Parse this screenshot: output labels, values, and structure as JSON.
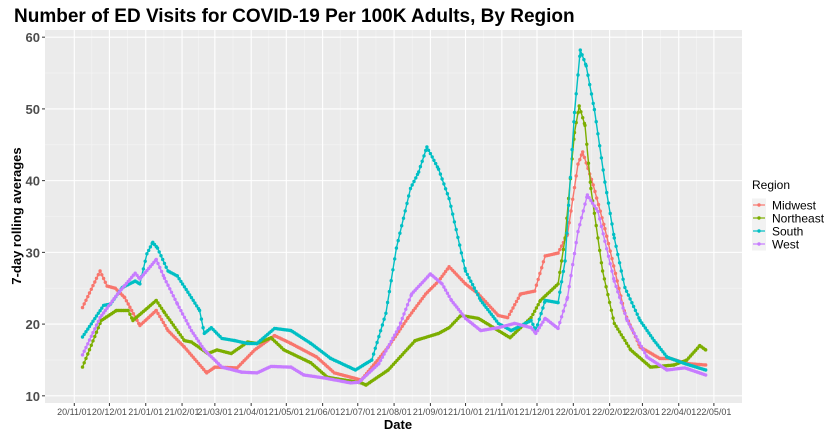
{
  "chart_data": {
    "type": "scatter",
    "title": "Number of ED Visits for COVID-19 Per 100K Adults, By Region",
    "xlabel": "Date",
    "ylabel": "7-day rolling averages",
    "x_is": "day index (day 0 = first tick date 20/11/01)",
    "ylim": [
      9,
      61
    ],
    "xlim": [
      -25,
      570
    ],
    "yticks": [
      10,
      20,
      30,
      40,
      50,
      60
    ],
    "ytick_labels": [
      "10",
      "20",
      "30",
      "40",
      "50",
      "60"
    ],
    "xticks": [
      0,
      30,
      61,
      92,
      120,
      151,
      181,
      212,
      242,
      273,
      304,
      334,
      365,
      395,
      426,
      457,
      485,
      516,
      546
    ],
    "xtick_labels": [
      "20/11/01",
      "20/12/01",
      "21/01/01",
      "21/02/01",
      "21/03/01",
      "21/04/01",
      "21/05/01",
      "21/06/01",
      "21/07/01",
      "21/08/01",
      "21/09/01",
      "21/10/01",
      "21/11/01",
      "21/12/01",
      "22/01/01",
      "22/02/01",
      "22/03/01",
      "22/04/01",
      "22/05/01"
    ],
    "grid": true,
    "legend": {
      "title": "Region",
      "placement": "right"
    },
    "series": [
      {
        "name": "Midwest",
        "color": "#F8766D",
        "points": [
          [
            7,
            22.3
          ],
          [
            22,
            27.4
          ],
          [
            28,
            25.3
          ],
          [
            35,
            25.0
          ],
          [
            43,
            23.7
          ],
          [
            56,
            19.8
          ],
          [
            70,
            21.9
          ],
          [
            80,
            19.1
          ],
          [
            94,
            16.8
          ],
          [
            113,
            13.2
          ],
          [
            120,
            14.0
          ],
          [
            139,
            13.9
          ],
          [
            154,
            16.4
          ],
          [
            171,
            18.4
          ],
          [
            185,
            17.3
          ],
          [
            207,
            15.4
          ],
          [
            222,
            13.2
          ],
          [
            245,
            12.2
          ],
          [
            268,
            16.8
          ],
          [
            285,
            20.9
          ],
          [
            300,
            24.2
          ],
          [
            311,
            26.0
          ],
          [
            320,
            28.0
          ],
          [
            334,
            25.6
          ],
          [
            345,
            24.2
          ],
          [
            362,
            21.2
          ],
          [
            370,
            20.9
          ],
          [
            381,
            24.2
          ],
          [
            393,
            24.6
          ],
          [
            402,
            29.5
          ],
          [
            413,
            29.9
          ],
          [
            421,
            32.5
          ],
          [
            430,
            42.3
          ],
          [
            434,
            44.0
          ],
          [
            443,
            39.4
          ],
          [
            453,
            33.3
          ],
          [
            470,
            21.5
          ],
          [
            483,
            16.8
          ],
          [
            500,
            15.2
          ],
          [
            509,
            15.2
          ],
          [
            523,
            14.5
          ],
          [
            539,
            14.3
          ]
        ]
      },
      {
        "name": "Northeast",
        "color": "#7CAE00",
        "points": [
          [
            7,
            14.0
          ],
          [
            23,
            20.5
          ],
          [
            36,
            21.9
          ],
          [
            46,
            21.9
          ],
          [
            50,
            20.5
          ],
          [
            70,
            23.3
          ],
          [
            77,
            21.6
          ],
          [
            94,
            17.7
          ],
          [
            100,
            17.5
          ],
          [
            114,
            15.9
          ],
          [
            122,
            16.4
          ],
          [
            134,
            15.9
          ],
          [
            148,
            17.5
          ],
          [
            156,
            17.3
          ],
          [
            168,
            18.1
          ],
          [
            179,
            16.4
          ],
          [
            202,
            14.6
          ],
          [
            216,
            12.6
          ],
          [
            245,
            11.8
          ],
          [
            249,
            11.5
          ],
          [
            268,
            13.6
          ],
          [
            291,
            17.7
          ],
          [
            311,
            18.7
          ],
          [
            320,
            19.5
          ],
          [
            330,
            21.2
          ],
          [
            345,
            20.8
          ],
          [
            372,
            18.1
          ],
          [
            390,
            20.9
          ],
          [
            398,
            23.3
          ],
          [
            413,
            25.6
          ],
          [
            419,
            32.0
          ],
          [
            427,
            46.7
          ],
          [
            431,
            50.4
          ],
          [
            436,
            47.7
          ],
          [
            441,
            38.9
          ],
          [
            451,
            27.4
          ],
          [
            461,
            20.1
          ],
          [
            475,
            16.4
          ],
          [
            492,
            14.0
          ],
          [
            512,
            14.3
          ],
          [
            523,
            15.0
          ],
          [
            534,
            17.0
          ],
          [
            539,
            16.4
          ]
        ]
      },
      {
        "name": "South",
        "color": "#00BFC4",
        "points": [
          [
            7,
            18.2
          ],
          [
            25,
            22.6
          ],
          [
            31,
            22.8
          ],
          [
            41,
            25.1
          ],
          [
            52,
            26.0
          ],
          [
            56,
            25.6
          ],
          [
            62,
            29.8
          ],
          [
            67,
            31.4
          ],
          [
            71,
            30.6
          ],
          [
            80,
            27.4
          ],
          [
            88,
            26.7
          ],
          [
            100,
            23.7
          ],
          [
            107,
            21.9
          ],
          [
            111,
            18.7
          ],
          [
            117,
            19.5
          ],
          [
            126,
            18.0
          ],
          [
            137,
            17.7
          ],
          [
            148,
            17.3
          ],
          [
            156,
            17.3
          ],
          [
            171,
            19.4
          ],
          [
            185,
            19.1
          ],
          [
            202,
            17.3
          ],
          [
            219,
            15.2
          ],
          [
            240,
            13.6
          ],
          [
            254,
            15.0
          ],
          [
            266,
            21.5
          ],
          [
            275,
            30.6
          ],
          [
            287,
            38.9
          ],
          [
            294,
            41.2
          ],
          [
            301,
            44.7
          ],
          [
            311,
            41.6
          ],
          [
            320,
            37.5
          ],
          [
            334,
            27.4
          ],
          [
            347,
            23.3
          ],
          [
            362,
            20.1
          ],
          [
            373,
            19.1
          ],
          [
            390,
            20.5
          ],
          [
            394,
            19.1
          ],
          [
            402,
            23.3
          ],
          [
            413,
            23.0
          ],
          [
            419,
            28.8
          ],
          [
            427,
            49.5
          ],
          [
            432,
            58.2
          ],
          [
            437,
            56.0
          ],
          [
            444,
            49.9
          ],
          [
            453,
            39.8
          ],
          [
            461,
            32.0
          ],
          [
            470,
            25.1
          ],
          [
            483,
            20.5
          ],
          [
            495,
            17.7
          ],
          [
            506,
            15.4
          ],
          [
            521,
            14.5
          ],
          [
            539,
            13.6
          ]
        ]
      },
      {
        "name": "West",
        "color": "#C77CFF",
        "points": [
          [
            7,
            15.7
          ],
          [
            22,
            20.9
          ],
          [
            37,
            24.2
          ],
          [
            52,
            27.1
          ],
          [
            56,
            26.3
          ],
          [
            70,
            29.0
          ],
          [
            77,
            26.4
          ],
          [
            88,
            22.8
          ],
          [
            100,
            19.1
          ],
          [
            111,
            16.4
          ],
          [
            126,
            14.0
          ],
          [
            143,
            13.3
          ],
          [
            156,
            13.2
          ],
          [
            168,
            14.1
          ],
          [
            185,
            14.0
          ],
          [
            196,
            12.9
          ],
          [
            213,
            12.5
          ],
          [
            236,
            11.8
          ],
          [
            243,
            11.9
          ],
          [
            260,
            14.5
          ],
          [
            277,
            19.5
          ],
          [
            288,
            24.2
          ],
          [
            304,
            27.0
          ],
          [
            314,
            25.6
          ],
          [
            322,
            23.3
          ],
          [
            334,
            20.8
          ],
          [
            347,
            19.1
          ],
          [
            362,
            19.5
          ],
          [
            376,
            20.1
          ],
          [
            390,
            19.5
          ],
          [
            394,
            18.7
          ],
          [
            402,
            20.8
          ],
          [
            413,
            19.4
          ],
          [
            421,
            23.7
          ],
          [
            430,
            32.9
          ],
          [
            438,
            38.0
          ],
          [
            447,
            35.7
          ],
          [
            461,
            26.0
          ],
          [
            472,
            20.5
          ],
          [
            489,
            15.4
          ],
          [
            506,
            13.6
          ],
          [
            521,
            13.9
          ],
          [
            539,
            12.9
          ]
        ]
      }
    ]
  }
}
